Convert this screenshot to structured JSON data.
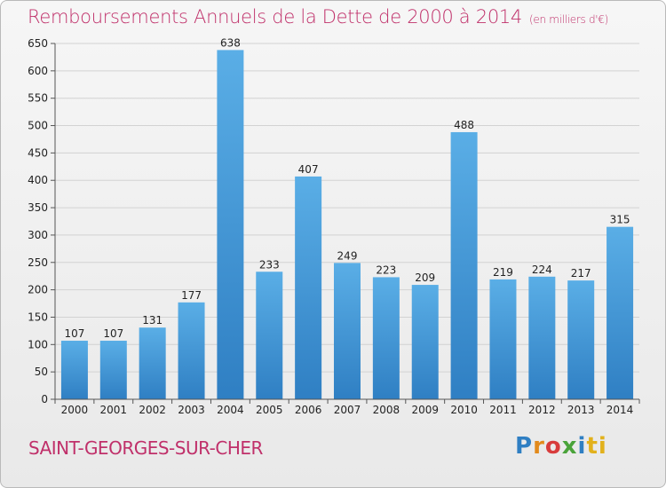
{
  "title": "Remboursements Annuels de la Dette de 2000 à 2014",
  "unit": "(en milliers d'€)",
  "commune": "SAINT-GEORGES-SUR-CHER",
  "logo_letters": [
    "P",
    "r",
    "o",
    "x",
    "i",
    "ti"
  ],
  "colors": {
    "title": "#c0306a",
    "bar_top": "#5aaee6",
    "bar_bottom": "#2f7fc3",
    "grid": "#d2d2d2",
    "axis_text": "#222222"
  },
  "chart_data": {
    "type": "bar",
    "categories": [
      "2000",
      "2001",
      "2002",
      "2003",
      "2004",
      "2005",
      "2006",
      "2007",
      "2008",
      "2009",
      "2010",
      "2011",
      "2012",
      "2013",
      "2014"
    ],
    "values": [
      107,
      107,
      131,
      177,
      638,
      233,
      407,
      249,
      223,
      209,
      488,
      219,
      224,
      217,
      315
    ],
    "yticks": [
      0,
      50,
      100,
      150,
      200,
      250,
      300,
      350,
      400,
      450,
      500,
      550,
      600,
      650
    ],
    "ylim": [
      0,
      650
    ],
    "grid": true
  }
}
